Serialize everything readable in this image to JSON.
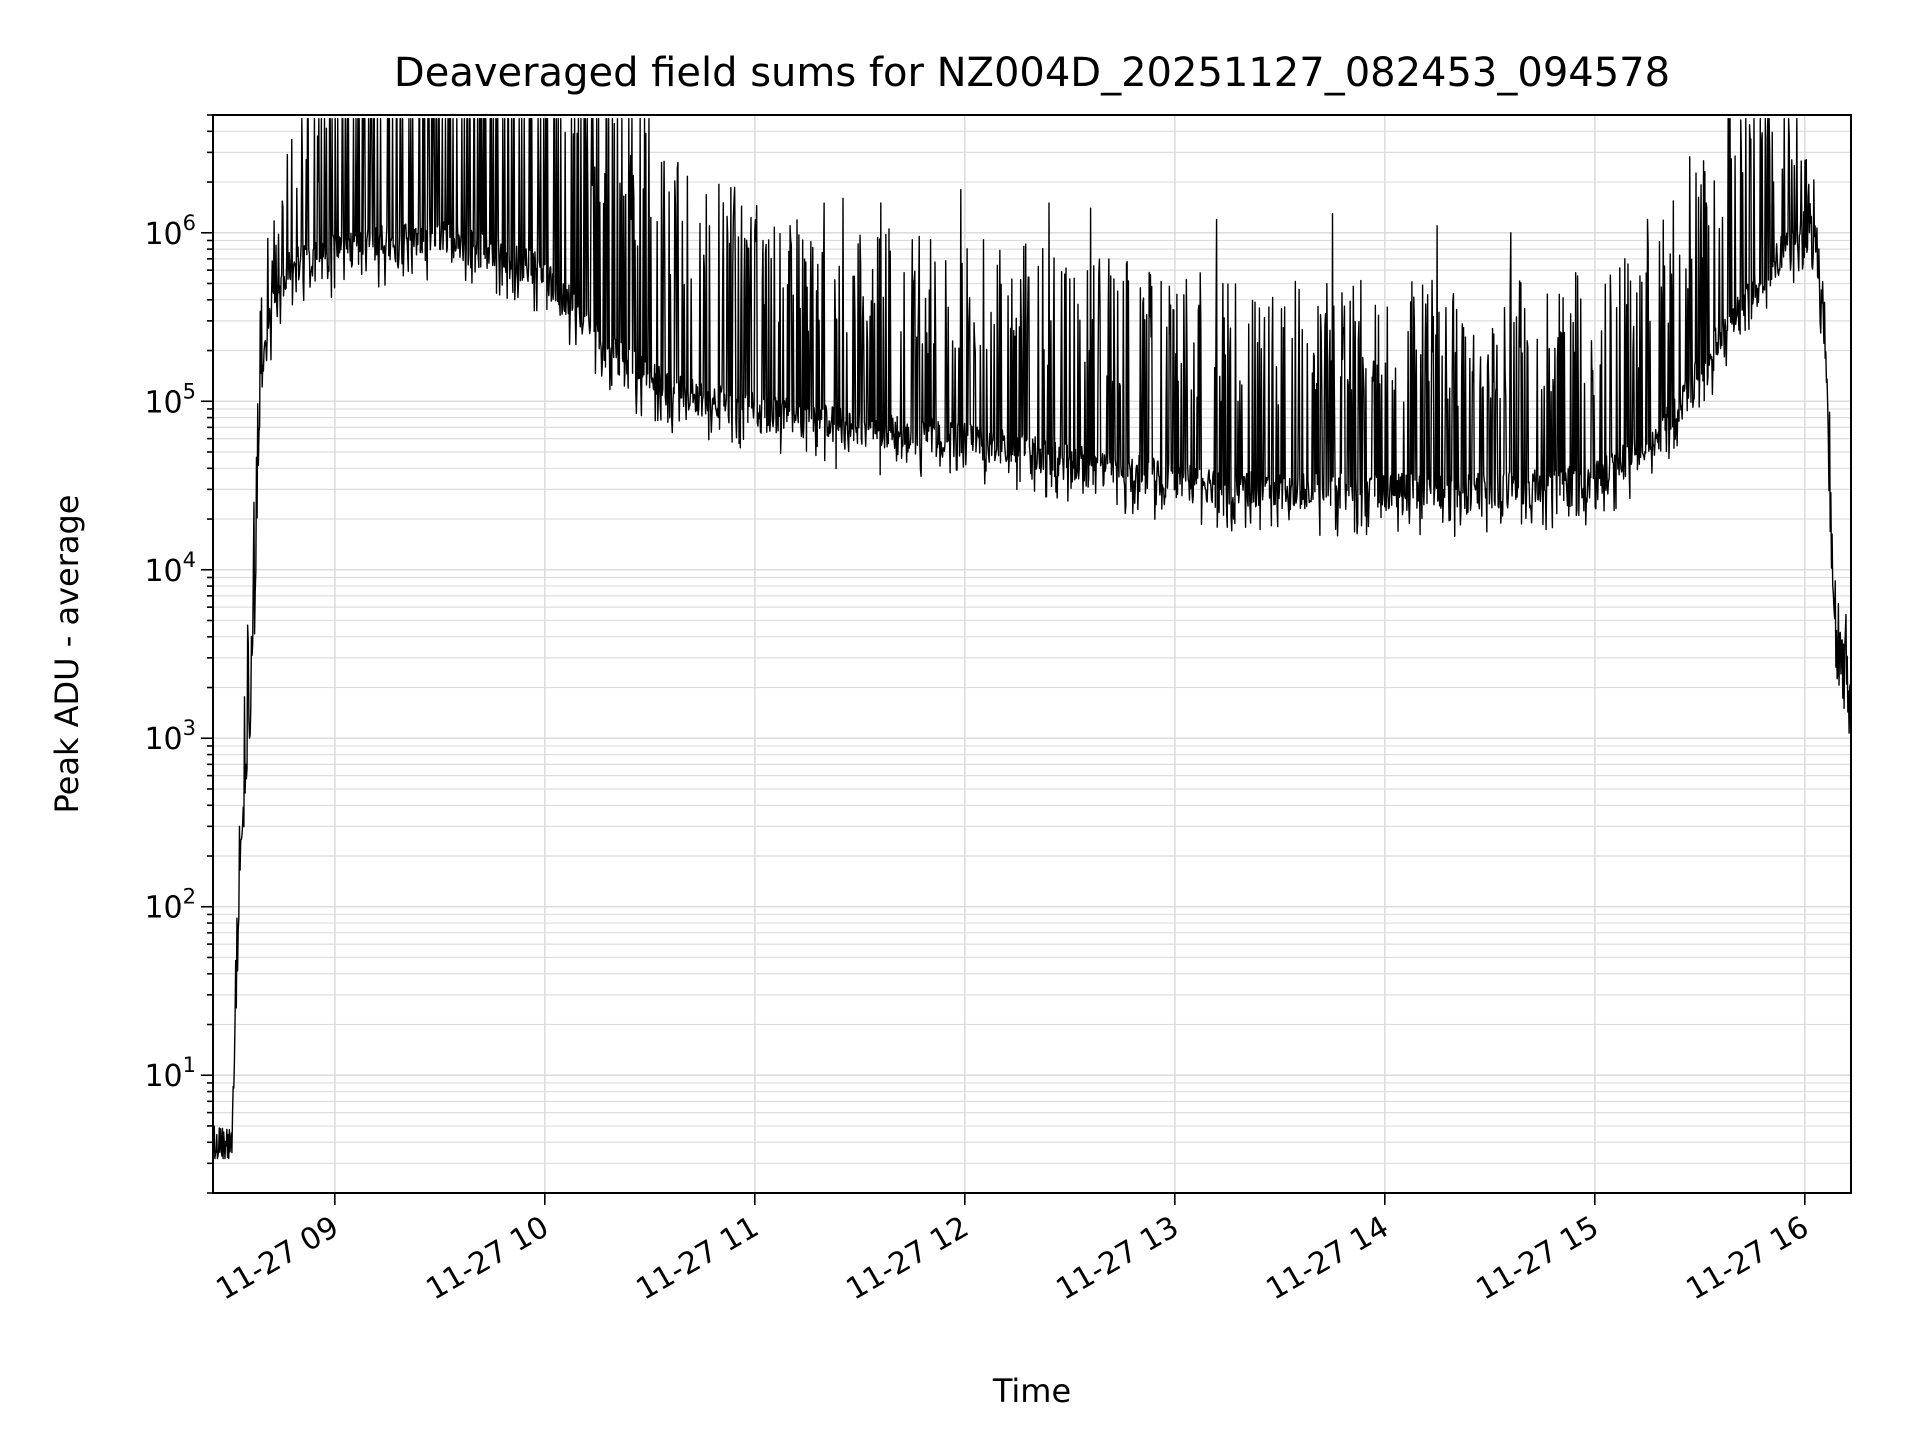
{
  "chart_data": {
    "type": "line",
    "title": "Deaveraged field sums for NZ004D_20251127_082453_094578",
    "xlabel": "Time",
    "ylabel": "Peak ADU - average",
    "yscale": "log",
    "ylim": [
      2,
      5000000
    ],
    "xlim_hours": [
      8.42,
      16.22
    ],
    "x_tick_values": [
      9,
      10,
      11,
      12,
      13,
      14,
      15,
      16
    ],
    "x_tick_labels": [
      "11-27 09",
      "11-27 10",
      "11-27 11",
      "11-27 12",
      "11-27 13",
      "11-27 14",
      "11-27 15",
      "11-27 16"
    ],
    "y_tick_exponents": [
      1,
      2,
      3,
      4,
      5,
      6
    ],
    "y_tick_base": "10",
    "grid": true,
    "line_color": "#000000",
    "grid_color": "#dddddd",
    "series": [
      {
        "name": "field sums",
        "envelope": [
          {
            "t": 8.42,
            "base": 4,
            "amp": 1.0
          },
          {
            "t": 8.51,
            "base": 4,
            "amp": 1.0
          },
          {
            "t": 8.55,
            "base": 200,
            "amp": 2.0
          },
          {
            "t": 8.6,
            "base": 1500,
            "amp": 2.0
          },
          {
            "t": 8.65,
            "base": 150000,
            "amp": 2.0
          },
          {
            "t": 8.72,
            "base": 500000,
            "amp": 1.5
          },
          {
            "t": 8.8,
            "base": 700000,
            "amp": 2.0
          },
          {
            "t": 8.9,
            "base": 700000,
            "amp": 4.0
          },
          {
            "t": 9.0,
            "base": 800000,
            "amp": 5.0
          },
          {
            "t": 9.5,
            "base": 1000000,
            "amp": 10.0
          },
          {
            "t": 10.0,
            "base": 600000,
            "amp": 8.0
          },
          {
            "t": 10.3,
            "base": 200000,
            "amp": 5.0
          },
          {
            "t": 10.6,
            "base": 120000,
            "amp": 4.0
          },
          {
            "t": 11.0,
            "base": 90000,
            "amp": 3.0
          },
          {
            "t": 11.5,
            "base": 70000,
            "amp": 3.0
          },
          {
            "t": 12.0,
            "base": 60000,
            "amp": 3.0
          },
          {
            "t": 12.5,
            "base": 45000,
            "amp": 3.0
          },
          {
            "t": 13.0,
            "base": 35000,
            "amp": 3.0
          },
          {
            "t": 13.5,
            "base": 30000,
            "amp": 3.0
          },
          {
            "t": 14.0,
            "base": 30000,
            "amp": 3.0
          },
          {
            "t": 14.5,
            "base": 30000,
            "amp": 3.0
          },
          {
            "t": 15.0,
            "base": 35000,
            "amp": 3.0
          },
          {
            "t": 15.3,
            "base": 60000,
            "amp": 3.0
          },
          {
            "t": 15.6,
            "base": 250000,
            "amp": 4.0
          },
          {
            "t": 15.9,
            "base": 800000,
            "amp": 3.0
          },
          {
            "t": 16.0,
            "base": 1100000,
            "amp": 1.5
          },
          {
            "t": 16.05,
            "base": 1000000,
            "amp": 1.3
          },
          {
            "t": 16.1,
            "base": 200000,
            "amp": 1.3
          },
          {
            "t": 16.15,
            "base": 2500,
            "amp": 1.5
          },
          {
            "t": 16.22,
            "base": 1800,
            "amp": 1.5
          }
        ],
        "spikes": [
          {
            "t": 8.92,
            "v": 2000000
          },
          {
            "t": 9.97,
            "v": 1900000
          },
          {
            "t": 10.22,
            "v": 1900000
          },
          {
            "t": 11.33,
            "v": 1500000
          },
          {
            "t": 11.42,
            "v": 1600000
          },
          {
            "t": 11.6,
            "v": 1500000
          },
          {
            "t": 11.98,
            "v": 1800000
          },
          {
            "t": 12.4,
            "v": 1500000
          },
          {
            "t": 12.6,
            "v": 1400000
          },
          {
            "t": 13.2,
            "v": 1200000
          },
          {
            "t": 13.75,
            "v": 1300000
          },
          {
            "t": 14.25,
            "v": 1100000
          },
          {
            "t": 14.6,
            "v": 1000000
          },
          {
            "t": 15.25,
            "v": 1200000
          },
          {
            "t": 15.85,
            "v": 2000000
          },
          {
            "t": 15.95,
            "v": 2500000
          }
        ]
      }
    ]
  }
}
